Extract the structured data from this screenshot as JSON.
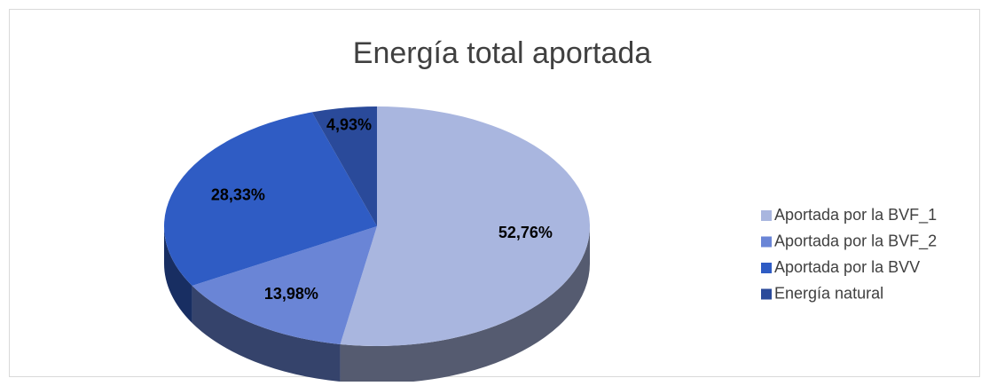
{
  "chart_data": {
    "type": "pie",
    "title": "Energía total aportada",
    "categories": [
      "Aportada por la BVF_1",
      "Aportada por la BVF_2",
      "Aportada por la BVV",
      "Energía natural"
    ],
    "values": [
      52.76,
      13.98,
      28.33,
      4.93
    ],
    "value_labels": [
      "52,76%",
      "13,98%",
      "28,33%",
      "4,93%"
    ],
    "colors": [
      "#a9b6df",
      "#6a85d6",
      "#2f5cc4",
      "#2a4a9a"
    ],
    "legend": "right"
  }
}
